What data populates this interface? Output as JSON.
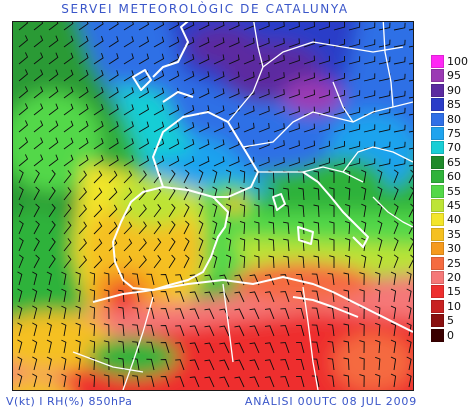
{
  "title": "SERVEI METEOROLÒGIC DE CATALUNYA",
  "footer": {
    "variable": "V(kt) I RH(%) 850hPa",
    "analysis": "ANÀLISI 00UTC 08 JUL 2009"
  },
  "legend": [
    {
      "label": "100",
      "color": "#ff28f5"
    },
    {
      "label": "95",
      "color": "#9b3bb4"
    },
    {
      "label": "90",
      "color": "#5b2aa0"
    },
    {
      "label": "85",
      "color": "#2a3cc8"
    },
    {
      "label": "80",
      "color": "#2f6fe6"
    },
    {
      "label": "75",
      "color": "#1ea3ee"
    },
    {
      "label": "70",
      "color": "#19ced5"
    },
    {
      "label": "65",
      "color": "#1f8a2a"
    },
    {
      "label": "60",
      "color": "#2fb23a"
    },
    {
      "label": "55",
      "color": "#53d848"
    },
    {
      "label": "45",
      "color": "#bde436"
    },
    {
      "label": "40",
      "color": "#f3e52a"
    },
    {
      "label": "35",
      "color": "#f5c020"
    },
    {
      "label": "30",
      "color": "#f59a1e"
    },
    {
      "label": "25",
      "color": "#f56b40"
    },
    {
      "label": "20",
      "color": "#f57878"
    },
    {
      "label": "15",
      "color": "#ee2f2f"
    },
    {
      "label": "10",
      "color": "#c82222"
    },
    {
      "label": "5",
      "color": "#8a1010"
    },
    {
      "label": "0",
      "color": "#3a0000"
    }
  ]
}
